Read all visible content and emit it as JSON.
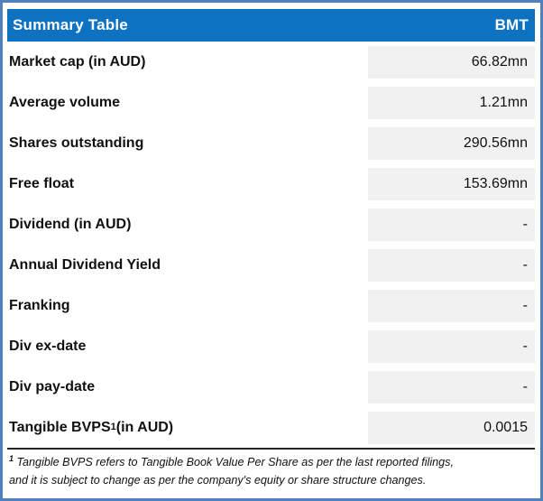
{
  "header": {
    "title": "Summary Table",
    "ticker": "BMT"
  },
  "rows": [
    {
      "label": "Market cap (in AUD)",
      "sup": "",
      "suffix": "",
      "value": "66.82mn"
    },
    {
      "label": "Average volume",
      "sup": "",
      "suffix": "",
      "value": "1.21mn"
    },
    {
      "label": "Shares outstanding",
      "sup": "",
      "suffix": "",
      "value": "290.56mn"
    },
    {
      "label": "Free float",
      "sup": "",
      "suffix": "",
      "value": "153.69mn"
    },
    {
      "label": "Dividend (in AUD)",
      "sup": "",
      "suffix": "",
      "value": "-"
    },
    {
      "label": "Annual Dividend Yield",
      "sup": "",
      "suffix": "",
      "value": "-"
    },
    {
      "label": "Franking",
      "sup": "",
      "suffix": "",
      "value": "-"
    },
    {
      "label": "Div ex-date",
      "sup": "",
      "suffix": "",
      "value": "-"
    },
    {
      "label": "Div pay-date",
      "sup": "",
      "suffix": "",
      "value": "-"
    },
    {
      "label": "Tangible BVPS",
      "sup": "1",
      "suffix": " (in AUD)",
      "value": "0.0015"
    }
  ],
  "footnote": {
    "sup": "1",
    "line1": " Tangible BVPS refers to Tangible Book Value Per Share as per the last reported filings,",
    "line2": "and it is subject to change as per the company's equity or share structure changes."
  },
  "colors": {
    "header_bg": "#0d72c2",
    "outer_border": "#4f81bd",
    "value_cell_bg": "#f1f1f1",
    "text": "#111111"
  }
}
